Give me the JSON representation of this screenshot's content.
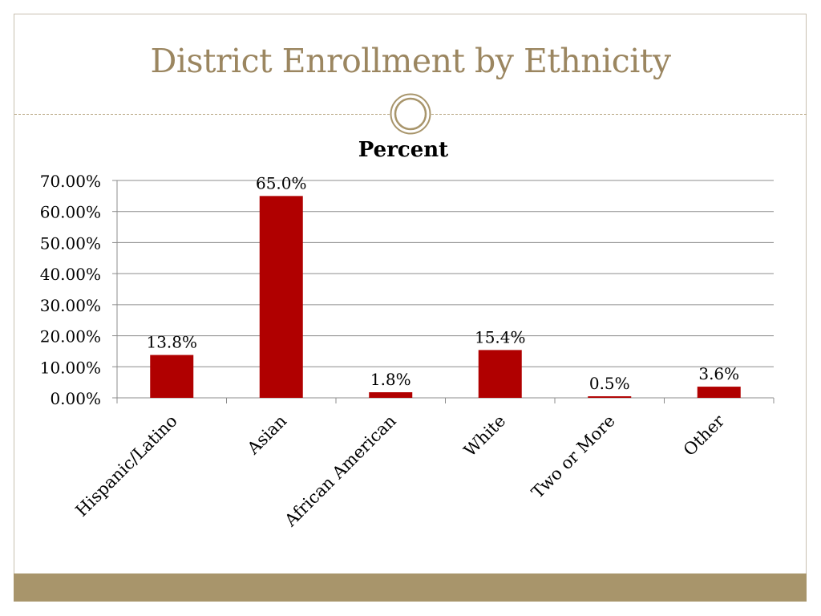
{
  "slide": {
    "title": "District Enrollment by Ethnicity",
    "colors": {
      "title": "#9b8660",
      "accent": "#a8956b",
      "bar": "#b00000"
    }
  },
  "chart_data": {
    "type": "bar",
    "title": "Percent",
    "categories": [
      "Hispanic/Latino",
      "Asian",
      "African American",
      "White",
      "Two or More",
      "Other"
    ],
    "values": [
      13.8,
      65.0,
      1.8,
      15.4,
      0.5,
      3.6
    ],
    "data_labels": [
      "13.8%",
      "65.0%",
      "1.8%",
      "15.4%",
      "0.5%",
      "3.6%"
    ],
    "ylim": [
      0,
      70
    ],
    "yticks": [
      0,
      10,
      20,
      30,
      40,
      50,
      60,
      70
    ],
    "ytick_labels": [
      "0.00%",
      "10.00%",
      "20.00%",
      "30.00%",
      "40.00%",
      "50.00%",
      "60.00%",
      "70.00%"
    ],
    "xlabel": "",
    "ylabel": "",
    "grid": true,
    "legend": "none"
  }
}
